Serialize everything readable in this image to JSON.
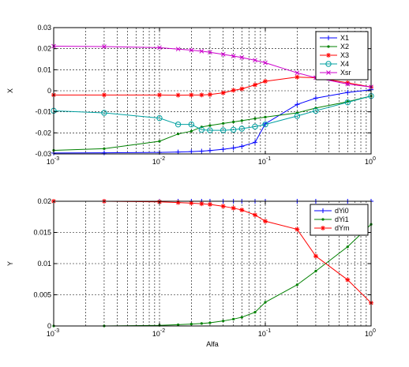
{
  "chart_data": [
    {
      "type": "line",
      "xscale": "log",
      "xlim": [
        0.001,
        1
      ],
      "ylim": [
        -0.03,
        0.03
      ],
      "grid": true,
      "xlabel": "",
      "ylabel": "X",
      "legend_position": "top-right",
      "x_tick_labels": [
        {
          "base": "10",
          "exp": "-3"
        },
        {
          "base": "10",
          "exp": "-2"
        },
        {
          "base": "10",
          "exp": "-1"
        },
        {
          "base": "10",
          "exp": "0"
        }
      ],
      "y_ticks": [
        -0.03,
        -0.02,
        -0.01,
        0,
        0.01,
        0.02,
        0.03
      ],
      "y_tick_labels": [
        "-0.03",
        "-0.02",
        "-0.01",
        "0",
        "0.01",
        "0.02",
        "0.03"
      ],
      "series": [
        {
          "name": "X1",
          "color": "#0000ff",
          "marker": "plus",
          "x": [
            0.001,
            0.003,
            0.01,
            0.015,
            0.02,
            0.025,
            0.03,
            0.04,
            0.05,
            0.06,
            0.08,
            0.1,
            0.2,
            0.3,
            0.6,
            1
          ],
          "y": [
            -0.0296,
            -0.0295,
            -0.0293,
            -0.0291,
            -0.0289,
            -0.0287,
            -0.0284,
            -0.0278,
            -0.0272,
            -0.0264,
            -0.0245,
            -0.0157,
            -0.0065,
            -0.0035,
            -0.0008,
            0.0005
          ]
        },
        {
          "name": "X2",
          "color": "#008000",
          "marker": "dot",
          "x": [
            0.001,
            0.003,
            0.01,
            0.015,
            0.02,
            0.025,
            0.03,
            0.04,
            0.05,
            0.06,
            0.08,
            0.1,
            0.2,
            0.3,
            0.6,
            1
          ],
          "y": [
            -0.0283,
            -0.0275,
            -0.024,
            -0.0205,
            -0.0192,
            -0.0172,
            -0.0165,
            -0.0155,
            -0.0148,
            -0.0142,
            -0.0132,
            -0.0125,
            -0.0105,
            -0.0082,
            -0.0052,
            -0.0025
          ]
        },
        {
          "name": "X3",
          "color": "#ff0000",
          "marker": "star",
          "x": [
            0.001,
            0.003,
            0.01,
            0.015,
            0.02,
            0.025,
            0.03,
            0.04,
            0.05,
            0.06,
            0.08,
            0.1,
            0.2,
            0.3,
            0.6,
            1
          ],
          "y": [
            -0.002,
            -0.002,
            -0.002,
            -0.0021,
            -0.002,
            -0.002,
            -0.0018,
            -0.001,
            0.0002,
            0.0009,
            0.0028,
            0.0045,
            0.0065,
            0.0062,
            0.0038,
            0.0018
          ]
        },
        {
          "name": "X4",
          "color": "#00a0a0",
          "marker": "circle",
          "x": [
            0.001,
            0.003,
            0.01,
            0.015,
            0.02,
            0.025,
            0.03,
            0.04,
            0.05,
            0.06,
            0.08,
            0.1,
            0.2,
            0.3,
            0.6,
            1
          ],
          "y": [
            -0.0095,
            -0.0105,
            -0.013,
            -0.016,
            -0.016,
            -0.0185,
            -0.0188,
            -0.0188,
            -0.0185,
            -0.018,
            -0.017,
            -0.016,
            -0.012,
            -0.0095,
            -0.0055,
            -0.0025
          ]
        },
        {
          "name": "Xsr",
          "color": "#cc00cc",
          "marker": "x",
          "x": [
            0.001,
            0.003,
            0.01,
            0.015,
            0.02,
            0.025,
            0.03,
            0.04,
            0.05,
            0.06,
            0.08,
            0.1,
            0.2,
            0.3,
            0.6,
            1
          ],
          "y": [
            0.0212,
            0.021,
            0.0205,
            0.0198,
            0.0193,
            0.0188,
            0.0183,
            0.0173,
            0.0165,
            0.0158,
            0.0145,
            0.0133,
            0.0085,
            0.0062,
            0.0032,
            0.0018
          ]
        }
      ]
    },
    {
      "type": "line",
      "xscale": "log",
      "xlim": [
        0.001,
        1
      ],
      "ylim": [
        0,
        0.02
      ],
      "grid": true,
      "xlabel": "Alfa",
      "ylabel": "Y",
      "legend_position": "top-right",
      "x_tick_labels": [
        {
          "base": "10",
          "exp": "-3"
        },
        {
          "base": "10",
          "exp": "-2"
        },
        {
          "base": "10",
          "exp": "-1"
        },
        {
          "base": "10",
          "exp": "0"
        }
      ],
      "y_ticks": [
        0,
        0.005,
        0.01,
        0.015,
        0.02
      ],
      "y_tick_labels": [
        "0",
        "0.005",
        "0.01",
        "0.015",
        "0.02"
      ],
      "series": [
        {
          "name": "dYi0",
          "color": "#0000ff",
          "marker": "plus",
          "x": [
            0.001,
            0.003,
            0.01,
            0.015,
            0.02,
            0.025,
            0.03,
            0.04,
            0.05,
            0.06,
            0.08,
            0.1,
            0.2,
            0.3,
            0.6,
            1
          ],
          "y": [
            0.02,
            0.02,
            0.02,
            0.02,
            0.02,
            0.02,
            0.02,
            0.02,
            0.02,
            0.02,
            0.02,
            0.02,
            0.02,
            0.02,
            0.02,
            0.02
          ]
        },
        {
          "name": "dYi1",
          "color": "#008000",
          "marker": "dot",
          "x": [
            0.001,
            0.003,
            0.01,
            0.015,
            0.02,
            0.025,
            0.03,
            0.04,
            0.05,
            0.06,
            0.08,
            0.1,
            0.2,
            0.3,
            0.6,
            1
          ],
          "y": [
            0.0,
            0.0,
            0.0001,
            0.0002,
            0.0003,
            0.0004,
            0.0005,
            0.0008,
            0.0011,
            0.0014,
            0.0022,
            0.0038,
            0.0066,
            0.0088,
            0.0127,
            0.0163
          ]
        },
        {
          "name": "dYm",
          "color": "#ff0000",
          "marker": "star",
          "x": [
            0.001,
            0.003,
            0.01,
            0.015,
            0.02,
            0.025,
            0.03,
            0.04,
            0.05,
            0.06,
            0.08,
            0.1,
            0.2,
            0.3,
            0.6,
            1
          ],
          "y": [
            0.02,
            0.02,
            0.0199,
            0.0198,
            0.0197,
            0.0196,
            0.0195,
            0.0192,
            0.0189,
            0.0186,
            0.0178,
            0.0168,
            0.0155,
            0.0112,
            0.0074,
            0.0037
          ]
        }
      ]
    }
  ]
}
